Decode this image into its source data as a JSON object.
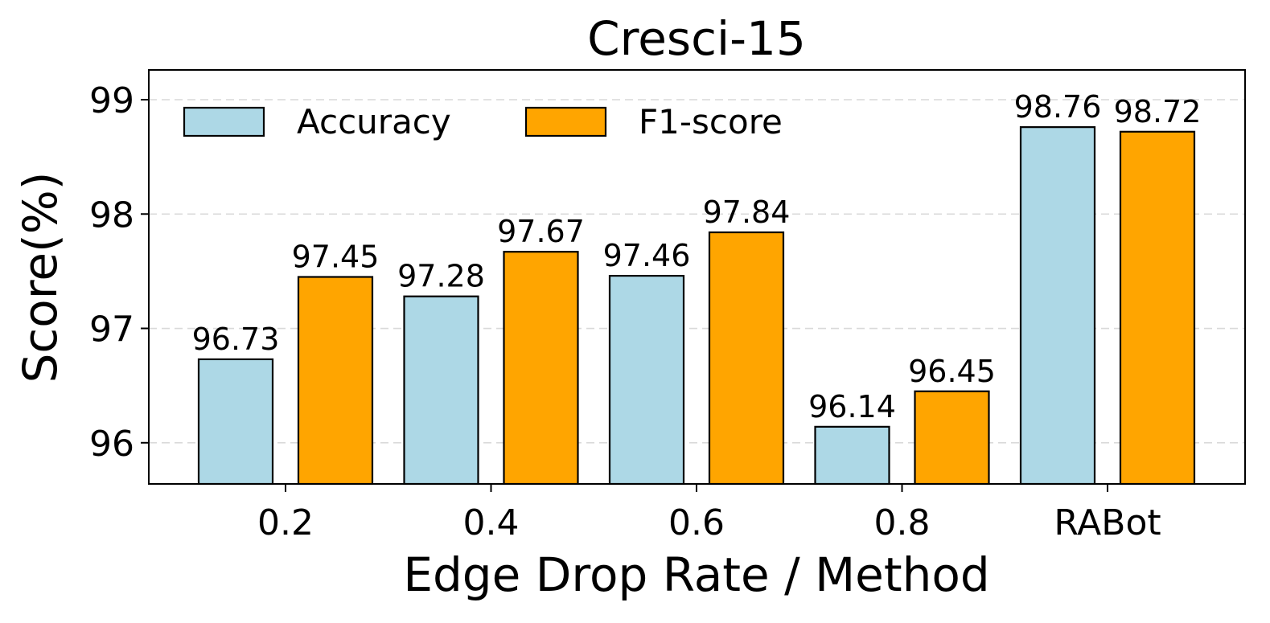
{
  "chart_data": {
    "type": "bar",
    "title": "Cresci-15",
    "xlabel": "Edge Drop Rate / Method",
    "ylabel": "Score(%)",
    "categories": [
      "0.2",
      "0.4",
      "0.6",
      "0.8",
      "RABot"
    ],
    "ylim": [
      95.64,
      99.26
    ],
    "yticks": [
      96,
      97,
      98,
      99
    ],
    "grid": "y-dashed",
    "legend_position": "top-left",
    "series": [
      {
        "name": "Accuracy",
        "color": "#add8e6",
        "values": [
          96.73,
          97.28,
          97.46,
          96.14,
          98.76
        ],
        "labels": [
          "96.73",
          "97.28",
          "97.46",
          "96.14",
          "98.76"
        ]
      },
      {
        "name": "F1-score",
        "color": "#ffa500",
        "values": [
          97.45,
          97.67,
          97.84,
          96.45,
          98.72
        ],
        "labels": [
          "97.45",
          "97.67",
          "97.84",
          "96.45",
          "98.72"
        ]
      }
    ]
  }
}
